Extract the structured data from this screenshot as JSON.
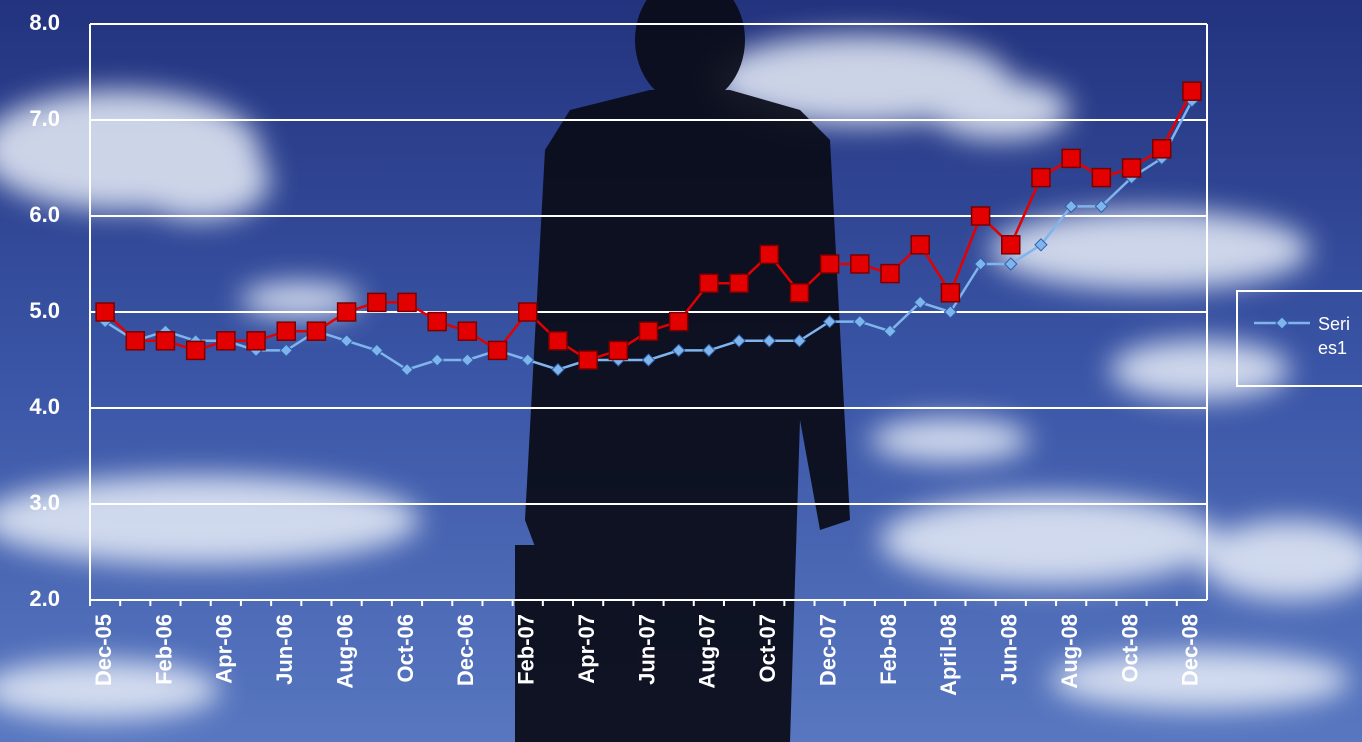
{
  "chart_data": {
    "type": "line",
    "categories": [
      "Dec-05",
      null,
      "Feb-06",
      null,
      "Apr-06",
      null,
      "Jun-06",
      null,
      "Aug-06",
      null,
      "Oct-06",
      null,
      "Dec-06",
      null,
      "Feb-07",
      null,
      "Apr-07",
      null,
      "Jun-07",
      null,
      "Aug-07",
      null,
      "Oct-07",
      null,
      "Dec-07",
      null,
      "Feb-08",
      null,
      "April-08",
      null,
      "Jun-08",
      null,
      "Aug-08",
      null,
      "Oct-08",
      null,
      "Dec-08"
    ],
    "series": [
      {
        "name": "Series1",
        "color": "#7fb4ec",
        "marker": "diamond",
        "values": [
          4.9,
          4.7,
          4.8,
          4.7,
          4.7,
          4.6,
          4.6,
          4.8,
          4.7,
          4.6,
          4.4,
          4.5,
          4.5,
          4.6,
          4.5,
          4.4,
          4.5,
          4.5,
          4.5,
          4.6,
          4.6,
          4.7,
          4.7,
          4.7,
          4.9,
          4.9,
          4.8,
          5.1,
          5.0,
          5.5,
          5.5,
          5.7,
          6.1,
          6.1,
          6.4,
          6.6,
          7.2
        ]
      },
      {
        "color": "#e30000",
        "marker": "square",
        "values": [
          5.0,
          4.7,
          4.7,
          4.6,
          4.7,
          4.7,
          4.8,
          4.8,
          5.0,
          5.1,
          5.1,
          4.9,
          4.8,
          4.6,
          5.0,
          4.7,
          4.5,
          4.6,
          4.8,
          4.9,
          5.3,
          5.3,
          5.6,
          5.2,
          5.5,
          5.5,
          5.4,
          5.7,
          5.2,
          6.0,
          5.7,
          6.4,
          6.6,
          6.4,
          6.5,
          6.7,
          7.3
        ]
      }
    ],
    "ylim": [
      2,
      8
    ],
    "yticks": [
      {
        "value": 2,
        "label": "2.0"
      },
      {
        "value": 3,
        "label": "3.0"
      },
      {
        "value": 4,
        "label": "4.0"
      },
      {
        "value": 5,
        "label": "5.0"
      },
      {
        "value": 6,
        "label": "6.0"
      },
      {
        "value": 7,
        "label": "7.0"
      },
      {
        "value": 8,
        "label": "8.0"
      }
    ],
    "grid": true,
    "legend": "right"
  }
}
